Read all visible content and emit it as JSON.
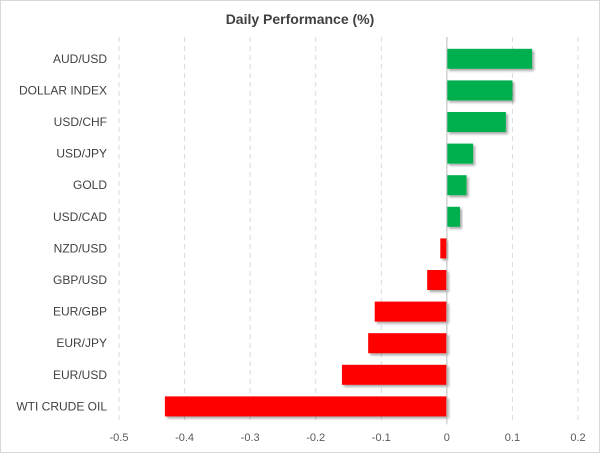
{
  "chart_data": {
    "type": "bar",
    "orientation": "horizontal",
    "title": "Daily Performance (%)",
    "categories": [
      "AUD/USD",
      "DOLLAR INDEX",
      "USD/CHF",
      "USD/JPY",
      "GOLD",
      "USD/CAD",
      "NZD/USD",
      "GBP/USD",
      "EUR/GBP",
      "EUR/JPY",
      "EUR/USD",
      "WTI CRUDE OIL"
    ],
    "values": [
      0.13,
      0.1,
      0.09,
      0.04,
      0.03,
      0.02,
      -0.01,
      -0.03,
      -0.11,
      -0.12,
      -0.16,
      -0.43
    ],
    "xlim": [
      -0.5,
      0.2
    ],
    "xticks": [
      "-0.5",
      "-0.4",
      "-0.3",
      "-0.2",
      "-0.1",
      "0",
      "0.1",
      "0.2"
    ],
    "xlabel": "",
    "ylabel": "",
    "grid": "vertical dashed",
    "legend": "none",
    "colors": {
      "positive": "#00b050",
      "negative": "#ff0000"
    }
  }
}
